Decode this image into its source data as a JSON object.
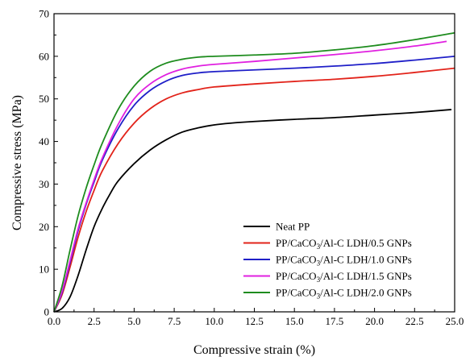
{
  "chart_data": {
    "type": "line",
    "xlabel": "Compressive strain (%)",
    "ylabel": "Compressive stress (MPa)",
    "xlim": [
      0,
      25
    ],
    "ylim": [
      0,
      70
    ],
    "x_ticks": [
      0.0,
      2.5,
      5.0,
      7.5,
      10.0,
      12.5,
      15.0,
      17.5,
      20.0,
      22.5,
      25.0
    ],
    "x_tick_labels": [
      "0.0",
      "2.5",
      "5.0",
      "7.5",
      "10.0",
      "12.5",
      "15.0",
      "17.5",
      "20.0",
      "22.5",
      "25.0"
    ],
    "y_ticks": [
      0,
      10,
      20,
      30,
      40,
      50,
      60,
      70
    ],
    "y_tick_labels": [
      "0",
      "10",
      "20",
      "30",
      "40",
      "50",
      "60",
      "70"
    ],
    "grid": false,
    "legend_position": "bottom-right",
    "series": [
      {
        "name": "Neat PP",
        "color": "#000000",
        "points": [
          [
            0,
            0
          ],
          [
            0.5,
            0.8
          ],
          [
            1.0,
            3.5
          ],
          [
            1.5,
            8.5
          ],
          [
            2.0,
            14.5
          ],
          [
            2.5,
            20.0
          ],
          [
            3.0,
            24.2
          ],
          [
            3.5,
            27.7
          ],
          [
            4.0,
            30.7
          ],
          [
            5.0,
            34.8
          ],
          [
            6.0,
            38.0
          ],
          [
            7.0,
            40.4
          ],
          [
            8.0,
            42.2
          ],
          [
            9.0,
            43.2
          ],
          [
            10.0,
            43.9
          ],
          [
            11.0,
            44.3
          ],
          [
            12.5,
            44.7
          ],
          [
            15.0,
            45.2
          ],
          [
            17.5,
            45.6
          ],
          [
            20.0,
            46.2
          ],
          [
            22.5,
            46.8
          ],
          [
            24.8,
            47.5
          ]
        ]
      },
      {
        "name": "PP/CaCO3/Al-C LDH/0.5 GNPs",
        "color": "#e2231a",
        "points": [
          [
            0,
            0
          ],
          [
            0.5,
            4.0
          ],
          [
            1.0,
            10.5
          ],
          [
            1.5,
            17.5
          ],
          [
            2.0,
            23.5
          ],
          [
            2.5,
            28.5
          ],
          [
            3.0,
            33.0
          ],
          [
            4.0,
            39.5
          ],
          [
            5.0,
            44.3
          ],
          [
            6.0,
            47.7
          ],
          [
            7.0,
            50.0
          ],
          [
            8.0,
            51.4
          ],
          [
            9.0,
            52.2
          ],
          [
            10.0,
            52.8
          ],
          [
            12.5,
            53.5
          ],
          [
            15.0,
            54.1
          ],
          [
            17.5,
            54.6
          ],
          [
            20.0,
            55.3
          ],
          [
            22.5,
            56.2
          ],
          [
            25.0,
            57.2
          ]
        ]
      },
      {
        "name": "PP/CaCO3/Al-C LDH/1.0 GNPs",
        "color": "#1f1fc8",
        "points": [
          [
            0,
            0
          ],
          [
            0.5,
            4.5
          ],
          [
            1.0,
            11.5
          ],
          [
            1.5,
            19.0
          ],
          [
            2.0,
            25.2
          ],
          [
            2.5,
            30.5
          ],
          [
            3.0,
            35.5
          ],
          [
            4.0,
            43.0
          ],
          [
            5.0,
            48.5
          ],
          [
            6.0,
            52.0
          ],
          [
            7.0,
            54.2
          ],
          [
            8.0,
            55.5
          ],
          [
            9.0,
            56.1
          ],
          [
            10.0,
            56.4
          ],
          [
            12.5,
            56.8
          ],
          [
            15.0,
            57.2
          ],
          [
            17.5,
            57.7
          ],
          [
            20.0,
            58.3
          ],
          [
            22.5,
            59.1
          ],
          [
            25.0,
            60.0
          ]
        ]
      },
      {
        "name": "PP/CaCO3/Al-C LDH/1.5 GNPs",
        "color": "#e020e0",
        "points": [
          [
            0,
            0
          ],
          [
            0.5,
            4.8
          ],
          [
            1.0,
            12.0
          ],
          [
            1.5,
            19.5
          ],
          [
            2.0,
            25.5
          ],
          [
            2.5,
            31.0
          ],
          [
            3.0,
            36.0
          ],
          [
            4.0,
            44.0
          ],
          [
            5.0,
            50.0
          ],
          [
            6.0,
            53.5
          ],
          [
            7.0,
            55.7
          ],
          [
            8.0,
            57.0
          ],
          [
            9.0,
            57.7
          ],
          [
            10.0,
            58.1
          ],
          [
            12.5,
            58.8
          ],
          [
            15.0,
            59.6
          ],
          [
            17.5,
            60.4
          ],
          [
            20.0,
            61.3
          ],
          [
            22.5,
            62.4
          ],
          [
            24.5,
            63.5
          ]
        ]
      },
      {
        "name": "PP/CaCO3/Al-C LDH/2.0 GNPs",
        "color": "#1e8c1e",
        "points": [
          [
            0,
            0
          ],
          [
            0.5,
            6.0
          ],
          [
            1.0,
            14.5
          ],
          [
            1.5,
            22.5
          ],
          [
            2.0,
            29.0
          ],
          [
            2.5,
            34.5
          ],
          [
            3.0,
            39.5
          ],
          [
            4.0,
            47.5
          ],
          [
            5.0,
            53.0
          ],
          [
            6.0,
            56.5
          ],
          [
            7.0,
            58.4
          ],
          [
            8.0,
            59.3
          ],
          [
            9.0,
            59.8
          ],
          [
            10.0,
            60.0
          ],
          [
            12.5,
            60.3
          ],
          [
            15.0,
            60.7
          ],
          [
            17.5,
            61.5
          ],
          [
            20.0,
            62.5
          ],
          [
            22.5,
            63.9
          ],
          [
            25.0,
            65.5
          ]
        ]
      }
    ]
  }
}
